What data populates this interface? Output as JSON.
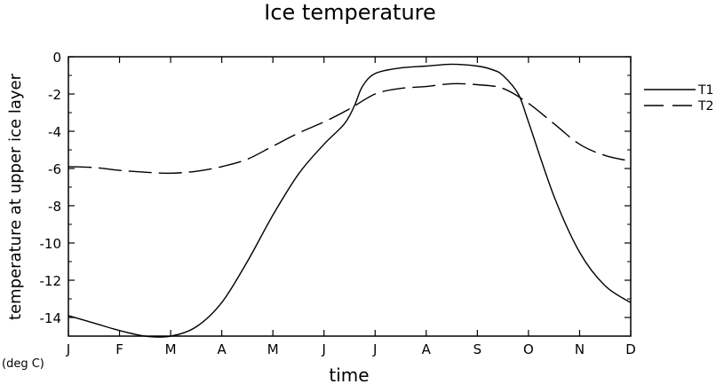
{
  "chart_data": {
    "type": "line",
    "title": "Ice temperature",
    "xlabel": "time",
    "ylabel": "temperature at upper ice layer",
    "yunit": "(deg C)",
    "x_categories": [
      "J",
      "F",
      "M",
      "A",
      "M",
      "J",
      "J",
      "A",
      "S",
      "O",
      "N",
      "D"
    ],
    "ylim": [
      -15,
      0
    ],
    "y_ticks": [
      0,
      -2,
      -4,
      -6,
      -8,
      -10,
      -12,
      -14
    ],
    "y_tick_labels": [
      "0",
      "-2",
      "-4",
      "-6",
      "-8",
      "-10",
      "-12",
      "-14"
    ],
    "legend_position": "right",
    "series": [
      {
        "name": "T1",
        "style": "solid",
        "color": "#000000",
        "x": [
          0,
          0.5,
          1,
          1.5,
          2,
          2.5,
          3,
          3.5,
          4,
          4.5,
          5,
          5.4,
          5.6,
          5.75,
          6,
          6.5,
          7,
          7.5,
          8,
          8.3,
          8.5,
          8.8,
          9,
          9.5,
          10,
          10.5,
          11
        ],
        "y": [
          -13.9,
          -14.3,
          -14.7,
          -15.0,
          -15.0,
          -14.5,
          -13.2,
          -11.0,
          -8.5,
          -6.3,
          -4.7,
          -3.6,
          -2.6,
          -1.6,
          -0.9,
          -0.6,
          -0.5,
          -0.4,
          -0.5,
          -0.7,
          -1.0,
          -2.0,
          -3.5,
          -7.5,
          -10.5,
          -12.3,
          -13.2
        ]
      },
      {
        "name": "T2",
        "style": "dashed",
        "color": "#000000",
        "x": [
          0,
          0.5,
          1,
          1.5,
          2,
          2.5,
          3,
          3.5,
          4,
          4.5,
          5,
          5.5,
          6,
          6.5,
          7,
          7.5,
          8,
          8.5,
          9,
          9.5,
          10,
          10.5,
          11
        ],
        "y": [
          -5.9,
          -5.95,
          -6.1,
          -6.2,
          -6.25,
          -6.15,
          -5.9,
          -5.5,
          -4.8,
          -4.1,
          -3.5,
          -2.8,
          -2.0,
          -1.7,
          -1.6,
          -1.45,
          -1.5,
          -1.7,
          -2.5,
          -3.6,
          -4.7,
          -5.3,
          -5.6
        ]
      }
    ]
  }
}
